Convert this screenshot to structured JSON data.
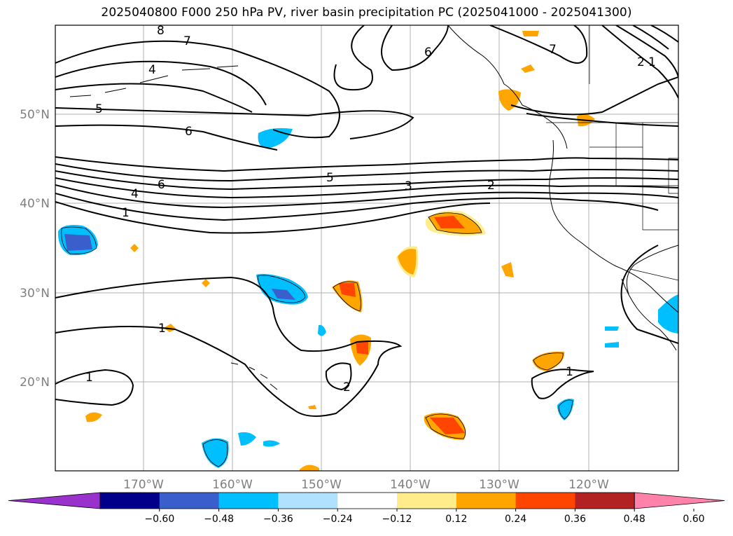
{
  "title": "2025040800 F000 250 hPa PV, river basin precipitation PC (2025041000 - 2025041300)",
  "lon_labels": [
    "170°W",
    "160°W",
    "150°W",
    "140°W",
    "130°W",
    "120°W"
  ],
  "lat_labels": [
    "50°N",
    "40°N",
    "30°N",
    "20°N"
  ],
  "contour_labels": [
    "8",
    "7",
    "4",
    "5",
    "6",
    "6",
    "4",
    "1",
    "5",
    "3",
    "2",
    "6",
    "7",
    "2",
    "1",
    "1",
    "1",
    "1",
    "2",
    "1"
  ],
  "colorbar": {
    "ticks": [
      "−0.60",
      "−0.48",
      "−0.36",
      "−0.24",
      "−0.12",
      "0.12",
      "0.24",
      "0.36",
      "0.48",
      "0.60"
    ],
    "colors": [
      "#9932cc",
      "#00008b",
      "#3a5fcd",
      "#00bfff",
      "#b0e2ff",
      "#ffffff",
      "#ffec8b",
      "#ffa500",
      "#ff4500",
      "#b22222",
      "#ff82ab"
    ]
  },
  "colors": {
    "grid": "#b0b0b0",
    "contour": "#000000",
    "tick_text": "#7f7f7f"
  }
}
